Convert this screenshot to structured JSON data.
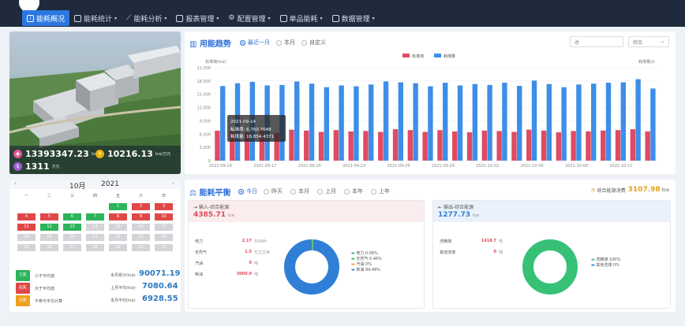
{
  "nav": {
    "items": [
      {
        "label": "能耗概况",
        "active": true
      },
      {
        "label": "能耗统计"
      },
      {
        "label": "能耗分析"
      },
      {
        "label": "报表管理"
      },
      {
        "label": "配置管理"
      },
      {
        "label": "单品能耗"
      },
      {
        "label": "数据管理"
      }
    ]
  },
  "hero": {
    "stat1_value": "13393347.23",
    "stat1_unit": "tce",
    "stat2_value": "10216.13",
    "stat2_unit": "tce/万元",
    "stat3_value": "1311",
    "stat3_unit": "万元"
  },
  "trend": {
    "title": "用能趋势",
    "range_options": [
      "最近一月",
      "本月",
      "自定义"
    ],
    "selected_range": "最近一月",
    "select1": "总",
    "select2": "综合",
    "tooltip": {
      "date": "2021-09-14",
      "line1": "标准煤: 6,760.7048",
      "line2": "耗煤量: 16,854.4371"
    }
  },
  "chart_data": {
    "type": "bar",
    "ylabel": "标准煤(tce)",
    "right_label": "耗煤量(t)",
    "legend": [
      "标准煤",
      "耗煤量"
    ],
    "ylim": [
      0,
      21000
    ],
    "yticks": [
      "21,000",
      "18,000",
      "15,000",
      "12,000",
      "9,000",
      "6,000",
      "3,000",
      "0"
    ],
    "xticks": [
      "2021-09-14",
      "2021-09-17",
      "2021-09-20",
      "2021-09-23",
      "2021-09-26",
      "2021-09-29",
      "2021-10-02",
      "2021-10-05",
      "2021-10-08",
      "2021-10-11"
    ],
    "series": [
      {
        "name": "标准煤",
        "values": [
          6760,
          6600,
          6400,
          6900,
          6300,
          7000,
          6800,
          6500,
          6900,
          6600,
          6700,
          6500,
          7100,
          6900,
          6500,
          6900,
          6600,
          6400,
          6800,
          6700,
          6500,
          7000,
          6800,
          6400,
          6700,
          6600,
          6800,
          6900,
          7100,
          6600
        ]
      },
      {
        "name": "耗煤量",
        "values": [
          16854,
          17500,
          17800,
          17000,
          17100,
          17900,
          17400,
          16600,
          17000,
          16800,
          17200,
          17900,
          17700,
          17500,
          16800,
          17600,
          17000,
          17300,
          17100,
          17600,
          16900,
          18100,
          17300,
          16600,
          17200,
          17400,
          17600,
          17700,
          18400,
          16300
        ]
      }
    ]
  },
  "calendar": {
    "month": "10月",
    "year": "2021",
    "weekdays": [
      "一",
      "二",
      "三",
      "四",
      "五",
      "六",
      "日"
    ],
    "legend": [
      {
        "count": "7天",
        "label": "小于平均值",
        "color": "#2db35a"
      },
      {
        "count": "6天",
        "label": "大于平均值",
        "color": "#e04848"
      },
      {
        "count": "0天",
        "label": "不参与平均计算",
        "color": "#f0a020"
      }
    ],
    "totals": [
      {
        "label": "本月累计(tce)",
        "value": "90071.19"
      },
      {
        "label": "上月平均(tce)",
        "value": "7080.64"
      },
      {
        "label": "本月平均(tce)",
        "value": "6928.55"
      }
    ]
  },
  "balance": {
    "title": "能耗平衡",
    "periods": [
      "今日",
      "昨天",
      "本月",
      "上月",
      "本年",
      "上年"
    ],
    "selected_period": "今日",
    "total_label": "综合能源消费",
    "total_value": "3107.98",
    "total_unit": "tce",
    "input": {
      "title": "输入-综合能源",
      "value": "4385.71",
      "unit": "tce",
      "rows": [
        {
          "name": "电力",
          "value": "2.17",
          "unit": "万kWh"
        },
        {
          "name": "天然气",
          "value": "1.5",
          "unit": "万立方米"
        },
        {
          "name": "汽油",
          "value": "0",
          "unit": "吨"
        },
        {
          "name": "柴油",
          "value": "3000.9",
          "unit": "吨"
        }
      ],
      "legend": [
        "电力 0.06%",
        "天然气 0.46%",
        "汽油 0%",
        "柴油 99.48%"
      ]
    },
    "output": {
      "title": "输出-综合能源",
      "value": "1277.73",
      "unit": "tce",
      "rows": [
        {
          "name": "洗精煤",
          "value": "1418.7",
          "unit": "吨"
        },
        {
          "name": "其他洗煤",
          "value": "0",
          "unit": "吨"
        }
      ],
      "legend": [
        "洗精煤 100%",
        "其他洗煤 0%"
      ]
    }
  }
}
